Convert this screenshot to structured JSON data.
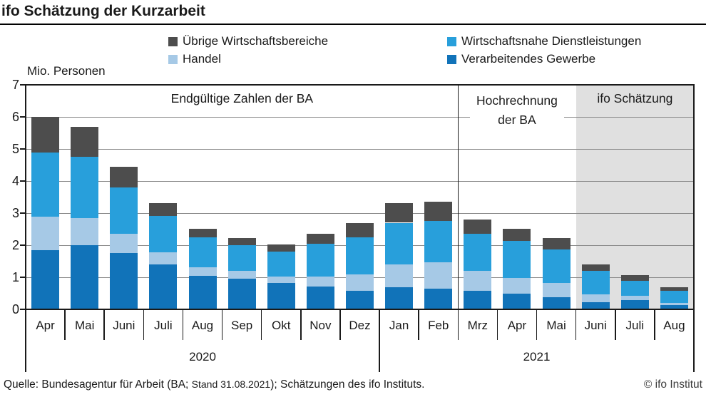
{
  "title": "ifo Schätzung der Kurzarbeit",
  "unit_label": "Mio. Personen",
  "legend": {
    "items": [
      {
        "label": "Übrige Wirtschaftsbereiche",
        "color": "#4d4d4d"
      },
      {
        "label": "Handel",
        "color": "#a6c9e6"
      },
      {
        "label": "Wirtschaftsnahe Dienstleistungen",
        "color": "#289fdb"
      },
      {
        "label": "Verarbeitendes Gewerbe",
        "color": "#1173b9"
      }
    ]
  },
  "footer": {
    "source_prefix": "Quelle: Bundesagentur für Arbeit (BA; ",
    "source_stand": "Stand 31.08.2021",
    "source_suffix": "); Schätzungen des ifo Instituts.",
    "copyright": "© ifo Institut"
  },
  "colors": {
    "shade": "#e0e0e0",
    "grid": "#8a8a8a",
    "frame": "#1a1a1a",
    "text": "#1a1a1a"
  },
  "chart_data": {
    "type": "bar",
    "stacked": true,
    "title": "ifo Schätzung der Kurzarbeit",
    "ylabel": "Mio. Personen",
    "ylim": [
      0,
      7
    ],
    "yticks": [
      0,
      1,
      2,
      3,
      4,
      5,
      6,
      7
    ],
    "grid": true,
    "legend_position": "top",
    "categories": [
      "Apr",
      "Mai",
      "Juni",
      "Juli",
      "Aug",
      "Sep",
      "Okt",
      "Nov",
      "Dez",
      "Jan",
      "Feb",
      "Mrz",
      "Apr",
      "Mai",
      "Juni",
      "Juli",
      "Aug"
    ],
    "year_groups": [
      {
        "label": "2020",
        "span": 9
      },
      {
        "label": "2021",
        "span": 8
      }
    ],
    "series": [
      {
        "name": "Verarbeitendes Gewerbe",
        "color": "#1173b9",
        "values": [
          1.85,
          2.0,
          1.75,
          1.4,
          1.05,
          0.95,
          0.82,
          0.72,
          0.57,
          0.7,
          0.64,
          0.57,
          0.48,
          0.38,
          0.23,
          0.28,
          0.13
        ]
      },
      {
        "name": "Handel",
        "color": "#a6c9e6",
        "values": [
          1.05,
          0.85,
          0.6,
          0.38,
          0.27,
          0.24,
          0.2,
          0.3,
          0.52,
          0.7,
          0.82,
          0.64,
          0.49,
          0.45,
          0.23,
          0.14,
          0.07
        ]
      },
      {
        "name": "Wirtschaftsnahe Dienstleistungen",
        "color": "#289fdb",
        "values": [
          2.0,
          1.9,
          1.45,
          1.13,
          0.93,
          0.8,
          0.78,
          1.03,
          1.15,
          1.3,
          1.3,
          1.14,
          1.16,
          1.04,
          0.74,
          0.46,
          0.38
        ]
      },
      {
        "name": "Übrige Wirtschaftsbereiche",
        "color": "#4d4d4d",
        "values": [
          1.1,
          0.95,
          0.65,
          0.4,
          0.27,
          0.24,
          0.22,
          0.31,
          0.44,
          0.61,
          0.6,
          0.44,
          0.39,
          0.36,
          0.21,
          0.18,
          0.11
        ]
      }
    ],
    "totals": [
      6.0,
      5.7,
      4.45,
      3.31,
      2.52,
      2.23,
      2.02,
      2.36,
      2.68,
      3.31,
      3.36,
      2.79,
      2.52,
      2.23,
      1.41,
      1.06,
      0.69
    ],
    "annotations": [
      {
        "label": "Endgültige Zahlen der BA",
        "lines": [
          "Endgültige Zahlen der BA"
        ],
        "from": 0,
        "to": 11,
        "shaded": false,
        "divider_at_start": false
      },
      {
        "label": "Hochrechnung der BA",
        "lines": [
          "Hochrechnung",
          "der BA"
        ],
        "from": 11,
        "to": 14,
        "shaded": false,
        "divider_at_start": true
      },
      {
        "label": "ifo Schätzung",
        "lines": [
          "ifo Schätzung"
        ],
        "from": 14,
        "to": 17,
        "shaded": true,
        "divider_at_start": false
      }
    ]
  }
}
